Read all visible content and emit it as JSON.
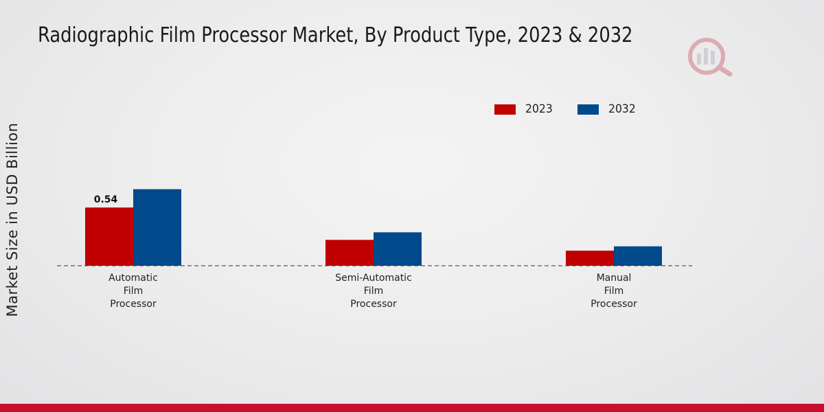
{
  "chart_data": {
    "type": "bar",
    "title": "Radiographic Film Processor Market, By Product Type, 2023 & 2032",
    "xlabel": "",
    "ylabel": "Market Size in USD Billion",
    "categories": [
      [
        "Automatic",
        "Film",
        "Processor"
      ],
      [
        "Semi-Automatic",
        "Film",
        "Processor"
      ],
      [
        "Manual",
        "Film",
        "Processor"
      ]
    ],
    "series": [
      {
        "name": "2023",
        "color": "#c00000",
        "values": [
          0.54,
          0.24,
          0.14
        ]
      },
      {
        "name": "2032",
        "color": "#004a8b",
        "values": [
          0.71,
          0.31,
          0.18
        ]
      }
    ],
    "data_labels": [
      {
        "series": 0,
        "category": 0,
        "text": "0.54"
      }
    ],
    "ylim": [
      0,
      1.0
    ],
    "grid": false,
    "legend_position": "top-right"
  },
  "brand": {
    "accent_bar_color": "#c8102e"
  }
}
